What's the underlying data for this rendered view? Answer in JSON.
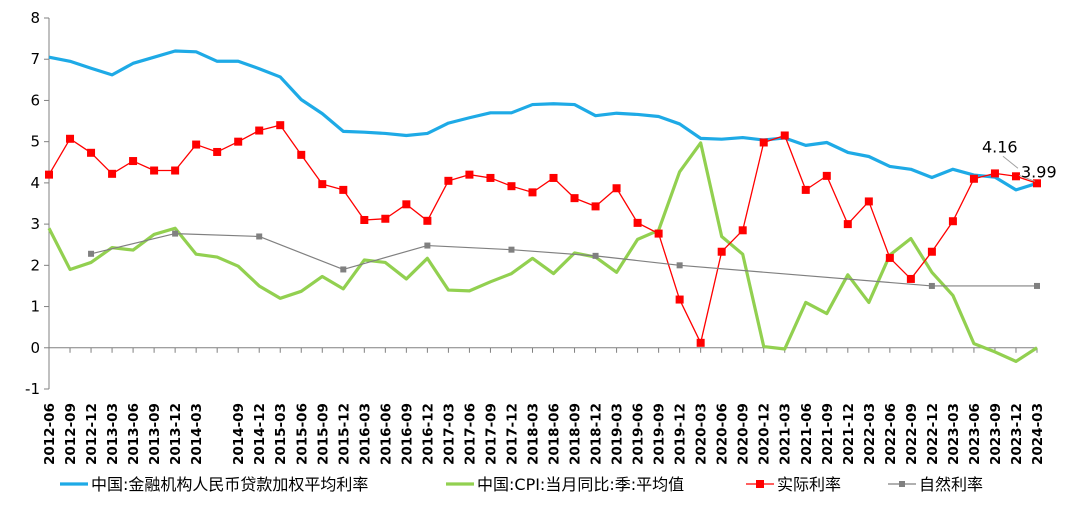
{
  "chart_data": {
    "type": "line",
    "title": "",
    "xlabel": "",
    "ylabel": "",
    "ylim": [
      -1,
      8
    ],
    "y_ticks": [
      "-1",
      "0",
      "1",
      "2",
      "3",
      "4",
      "5",
      "6",
      "7",
      "8"
    ],
    "grid": false,
    "legend_position": "bottom",
    "x": [
      "2012-06",
      "2012-09",
      "2012-12",
      "2013-03",
      "2013-06",
      "2013-09",
      "2013-12",
      "2014-03",
      "2014-06",
      "2014-09",
      "2014-12",
      "2015-03",
      "2015-06",
      "2015-09",
      "2015-12",
      "2016-03",
      "2016-06",
      "2016-09",
      "2016-12",
      "2017-03",
      "2017-06",
      "2017-09",
      "2017-12",
      "2018-03",
      "2018-06",
      "2018-09",
      "2018-12",
      "2019-03",
      "2019-06",
      "2019-09",
      "2019-12",
      "2020-03",
      "2020-06",
      "2020-09",
      "2020-12",
      "2021-03",
      "2021-06",
      "2021-09",
      "2021-12",
      "2022-03",
      "2022-06",
      "2022-09",
      "2022-12",
      "2023-03",
      "2023-06",
      "2023-09",
      "2023-12",
      "2024-03"
    ],
    "x_tick_labels": [
      "2012-06",
      "2012-09",
      "2012-12",
      "2013-03",
      "2013-06",
      "2013-09",
      "2013-12",
      "2014-03",
      "2014-09",
      "2014-12",
      "2015-03",
      "2015-06",
      "2015-09",
      "2015-12",
      "2016-03",
      "2016-06",
      "2016-09",
      "2016-12",
      "2017-03",
      "2017-06",
      "2017-09",
      "2017-12",
      "2018-03",
      "2018-06",
      "2018-09",
      "2018-12",
      "2019-03",
      "2019-06",
      "2019-09",
      "2019-12",
      "2020-03",
      "2020-06",
      "2020-09",
      "2020-12",
      "2021-03",
      "2021-06",
      "2021-09",
      "2021-12",
      "2022-03",
      "2022-06",
      "2022-09",
      "2022-12",
      "2023-03",
      "2023-06",
      "2023-09",
      "2023-12",
      "2024-03"
    ],
    "series": [
      {
        "name": "中国:金融机构人民币贷款加权平均利率",
        "color": "#1eaae6",
        "marker": "none",
        "values": [
          7.05,
          6.95,
          6.78,
          6.62,
          6.9,
          7.05,
          7.2,
          7.18,
          6.95,
          6.95,
          6.77,
          6.57,
          6.02,
          5.68,
          5.25,
          5.23,
          5.2,
          5.15,
          5.2,
          5.45,
          5.58,
          5.7,
          5.7,
          5.9,
          5.92,
          5.9,
          5.63,
          5.69,
          5.66,
          5.61,
          5.43,
          5.08,
          5.06,
          5.1,
          5.04,
          5.09,
          4.91,
          4.98,
          4.74,
          4.64,
          4.4,
          4.33,
          4.13,
          4.33,
          4.19,
          4.14,
          3.83,
          3.99
        ]
      },
      {
        "name": "中国:CPI:当月同比:季:平均值",
        "color": "#92d050",
        "marker": "none",
        "values": [
          2.9,
          1.9,
          2.07,
          2.43,
          2.37,
          2.75,
          2.9,
          2.27,
          2.2,
          1.98,
          1.5,
          1.2,
          1.37,
          1.73,
          1.43,
          2.13,
          2.07,
          1.67,
          2.17,
          1.4,
          1.38,
          1.6,
          1.8,
          2.17,
          1.8,
          2.3,
          2.2,
          1.83,
          2.63,
          2.85,
          4.27,
          4.97,
          2.7,
          2.27,
          0.03,
          -0.03,
          1.1,
          0.83,
          1.77,
          1.1,
          2.25,
          2.65,
          1.83,
          1.27,
          0.1,
          -0.1,
          -0.33,
          0.0
        ]
      },
      {
        "name": "实际利率",
        "color": "#ff0000",
        "marker": "square",
        "values": [
          4.2,
          5.07,
          4.73,
          4.22,
          4.53,
          4.3,
          4.3,
          4.93,
          4.75,
          5.0,
          5.27,
          5.4,
          4.68,
          3.97,
          3.83,
          3.1,
          3.13,
          3.48,
          3.08,
          4.05,
          4.2,
          4.12,
          3.92,
          3.77,
          4.12,
          3.63,
          3.43,
          3.87,
          3.03,
          2.77,
          1.17,
          0.12,
          2.33,
          2.85,
          4.98,
          5.15,
          3.83,
          4.17,
          3.0,
          3.55,
          2.18,
          1.67,
          2.33,
          3.07,
          4.1,
          4.23,
          4.16,
          3.99
        ]
      },
      {
        "name": "自然利率",
        "color": "#808080",
        "marker": "square",
        "sparse_markers": true,
        "points": [
          [
            "2012-12",
            2.28
          ],
          [
            "2013-12",
            2.77
          ],
          [
            "2014-12",
            2.7
          ],
          [
            "2015-12",
            1.9
          ],
          [
            "2016-12",
            2.48
          ],
          [
            "2017-12",
            2.38
          ],
          [
            "2018-12",
            2.23
          ],
          [
            "2019-12",
            2.0
          ],
          [
            "2022-12",
            1.5
          ],
          [
            "2024-03",
            1.5
          ]
        ]
      }
    ],
    "annotations": [
      {
        "text": "4.16",
        "x": "2023-12",
        "value": 4.16
      },
      {
        "text": "3.99",
        "x": "2024-03",
        "value": 3.99
      }
    ]
  }
}
